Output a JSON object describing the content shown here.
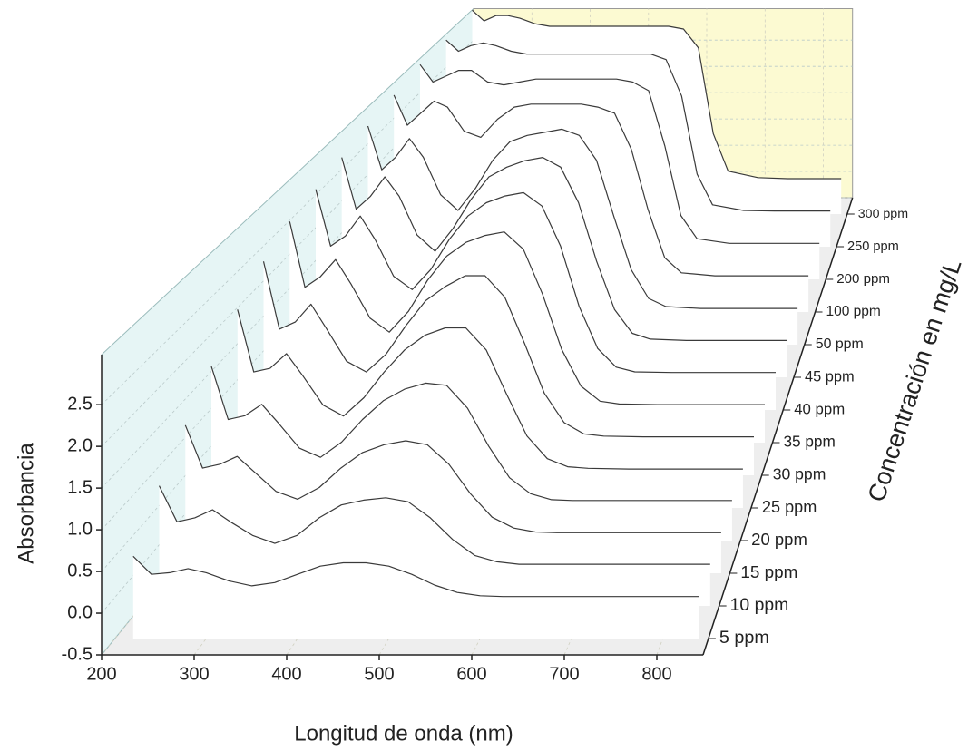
{
  "chart_data": {
    "type": "waterfall",
    "x_label": "Longitud de onda (nm)",
    "y_label": "Absorbancia",
    "z_label": "Concentración en mg/L",
    "xlim": [
      200,
      850
    ],
    "xticks": [
      200,
      300,
      400,
      500,
      600,
      700,
      800
    ],
    "ylim": [
      -0.5,
      3.1
    ],
    "yticks": [
      -0.5,
      {
        "value": 0,
        "label": "0.0"
      },
      0.5,
      {
        "value": 1,
        "label": "1.0"
      },
      1.5,
      {
        "value": 2,
        "label": "2.0"
      },
      2.5
    ],
    "grid": true,
    "line_color": "#3a3a3a",
    "side_wall_color": "#e6f5f5",
    "back_wall_color": "#fcfad2",
    "floor_color": "#eeeeee",
    "x": [
      220,
      240,
      260,
      280,
      300,
      325,
      350,
      375,
      400,
      425,
      450,
      475,
      500,
      525,
      550,
      575,
      600,
      625,
      650,
      700,
      750,
      800,
      840
    ],
    "series": [
      {
        "name": "5 ppm",
        "values": [
          0.5,
          0.28,
          0.3,
          0.35,
          0.3,
          0.2,
          0.14,
          0.18,
          0.28,
          0.38,
          0.42,
          0.42,
          0.38,
          0.28,
          0.15,
          0.06,
          0.02,
          0.01,
          0.01,
          0.01,
          0.01,
          0.01,
          0.01
        ]
      },
      {
        "name": "10 ppm",
        "values": [
          1.0,
          0.55,
          0.6,
          0.7,
          0.55,
          0.38,
          0.28,
          0.38,
          0.6,
          0.76,
          0.82,
          0.85,
          0.8,
          0.6,
          0.33,
          0.13,
          0.05,
          0.02,
          0.02,
          0.02,
          0.02,
          0.02,
          0.02
        ]
      },
      {
        "name": "15 ppm",
        "values": [
          1.4,
          0.85,
          0.9,
          1.0,
          0.8,
          0.55,
          0.45,
          0.6,
          0.85,
          1.05,
          1.15,
          1.2,
          1.15,
          0.9,
          0.52,
          0.22,
          0.08,
          0.03,
          0.02,
          0.02,
          0.02,
          0.02,
          0.02
        ]
      },
      {
        "name": "20 ppm",
        "values": [
          1.8,
          1.1,
          1.15,
          1.3,
          1.05,
          0.72,
          0.6,
          0.8,
          1.1,
          1.35,
          1.5,
          1.58,
          1.55,
          1.25,
          0.75,
          0.33,
          0.12,
          0.04,
          0.03,
          0.03,
          0.03,
          0.03,
          0.03
        ]
      },
      {
        "name": "25 ppm",
        "values": [
          2.2,
          1.35,
          1.4,
          1.6,
          1.3,
          0.9,
          0.75,
          1.0,
          1.35,
          1.65,
          1.85,
          1.95,
          1.95,
          1.65,
          1.05,
          0.48,
          0.17,
          0.06,
          0.04,
          0.03,
          0.03,
          0.03,
          0.03
        ]
      },
      {
        "name": "30 ppm",
        "values": [
          2.5,
          1.55,
          1.65,
          1.9,
          1.55,
          1.1,
          0.95,
          1.2,
          1.6,
          1.95,
          2.15,
          2.3,
          2.3,
          2.0,
          1.35,
          0.65,
          0.24,
          0.08,
          0.05,
          0.04,
          0.04,
          0.04,
          0.04
        ]
      },
      {
        "name": "35 ppm",
        "values": [
          2.7,
          1.75,
          1.9,
          2.15,
          1.8,
          1.3,
          1.1,
          1.4,
          1.85,
          2.2,
          2.4,
          2.5,
          2.55,
          2.3,
          1.65,
          0.85,
          0.32,
          0.1,
          0.06,
          0.05,
          0.05,
          0.05,
          0.05
        ]
      },
      {
        "name": "40 ppm",
        "values": [
          2.8,
          1.95,
          2.1,
          2.4,
          2.05,
          1.5,
          1.3,
          1.6,
          2.05,
          2.4,
          2.6,
          2.7,
          2.75,
          2.55,
          1.95,
          1.05,
          0.42,
          0.14,
          0.07,
          0.06,
          0.06,
          0.06,
          0.06
        ]
      },
      {
        "name": "45 ppm",
        "values": [
          2.9,
          2.1,
          2.3,
          2.6,
          2.3,
          1.7,
          1.45,
          1.8,
          2.25,
          2.6,
          2.75,
          2.85,
          2.9,
          2.75,
          2.2,
          1.3,
          0.55,
          0.18,
          0.09,
          0.07,
          0.07,
          0.07,
          0.07
        ]
      },
      {
        "name": "50 ppm",
        "values": [
          3.0,
          2.3,
          2.5,
          2.8,
          2.5,
          1.9,
          1.65,
          2.0,
          2.45,
          2.75,
          2.85,
          2.9,
          2.95,
          2.85,
          2.45,
          1.55,
          0.7,
          0.24,
          0.11,
          0.08,
          0.08,
          0.08,
          0.08
        ]
      },
      {
        "name": "100 ppm",
        "values": [
          3.1,
          2.6,
          2.8,
          3.0,
          2.9,
          2.5,
          2.4,
          2.7,
          2.9,
          2.95,
          2.95,
          2.95,
          2.95,
          2.9,
          2.8,
          2.2,
          1.2,
          0.4,
          0.15,
          0.1,
          0.1,
          0.1,
          0.1
        ]
      },
      {
        "name": "200 ppm",
        "values": [
          3.2,
          2.9,
          3.0,
          3.1,
          3.1,
          2.9,
          2.85,
          2.9,
          2.95,
          2.95,
          2.95,
          2.95,
          2.95,
          2.95,
          2.9,
          2.75,
          1.8,
          0.6,
          0.2,
          0.12,
          0.12,
          0.12,
          0.12
        ]
      },
      {
        "name": "250 ppm",
        "values": [
          3.2,
          3.0,
          3.1,
          3.15,
          3.1,
          3.0,
          2.95,
          2.95,
          2.95,
          2.95,
          2.95,
          2.95,
          2.95,
          2.95,
          2.95,
          2.85,
          2.2,
          0.8,
          0.25,
          0.15,
          0.14,
          0.14,
          0.14
        ]
      },
      {
        "name": "300 ppm",
        "values": [
          3.3,
          3.1,
          3.2,
          3.2,
          3.15,
          3.05,
          3.0,
          3.0,
          3.0,
          3.0,
          3.0,
          3.0,
          3.0,
          3.0,
          3.0,
          2.95,
          2.6,
          1.0,
          0.3,
          0.18,
          0.16,
          0.16,
          0.16
        ]
      }
    ]
  }
}
